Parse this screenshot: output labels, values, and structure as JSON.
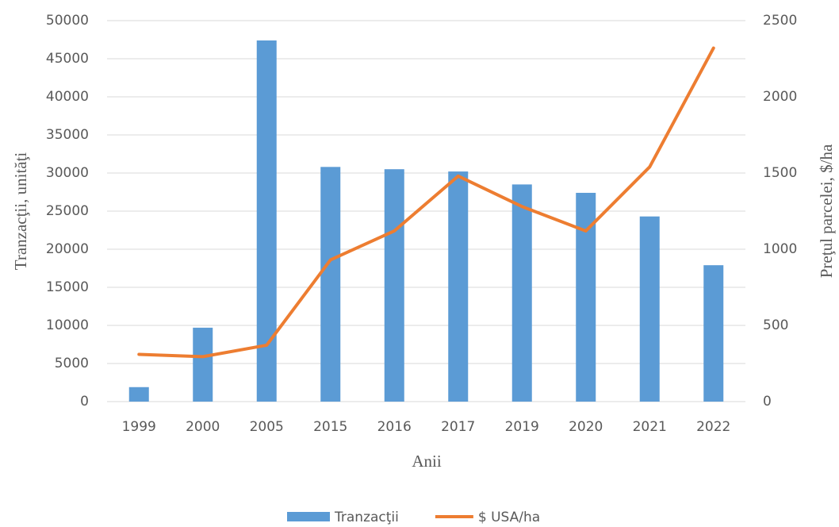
{
  "chart_data": {
    "type": "bar_line",
    "categories": [
      "1999",
      "2000",
      "2005",
      "2015",
      "2016",
      "2017",
      "2019",
      "2020",
      "2021",
      "2022"
    ],
    "series": [
      {
        "name": "Tranzacţii",
        "type": "bar",
        "color": "#5b9bd5",
        "values": [
          1900,
          9700,
          47400,
          30800,
          30500,
          30200,
          28500,
          27400,
          24300,
          17900
        ]
      },
      {
        "name": "$ USA/ha",
        "type": "line",
        "axis": "y2",
        "color": "#ed7d31",
        "values": [
          310,
          295,
          370,
          930,
          1120,
          1480,
          1280,
          1120,
          1540,
          2320
        ]
      }
    ],
    "x_label": "Anii",
    "y_label": "Tranzacţii, unităţi",
    "y2_label": "Preţul  parcelei,  $/ha",
    "ylim": [
      0,
      50000
    ],
    "yticks": [
      0,
      5000,
      10000,
      15000,
      20000,
      25000,
      30000,
      35000,
      40000,
      45000,
      50000
    ],
    "y2lim": [
      0,
      2500
    ],
    "y2ticks": [
      0,
      500,
      1000,
      1500,
      2000,
      2500
    ],
    "grid": true,
    "legend": "bottom"
  }
}
